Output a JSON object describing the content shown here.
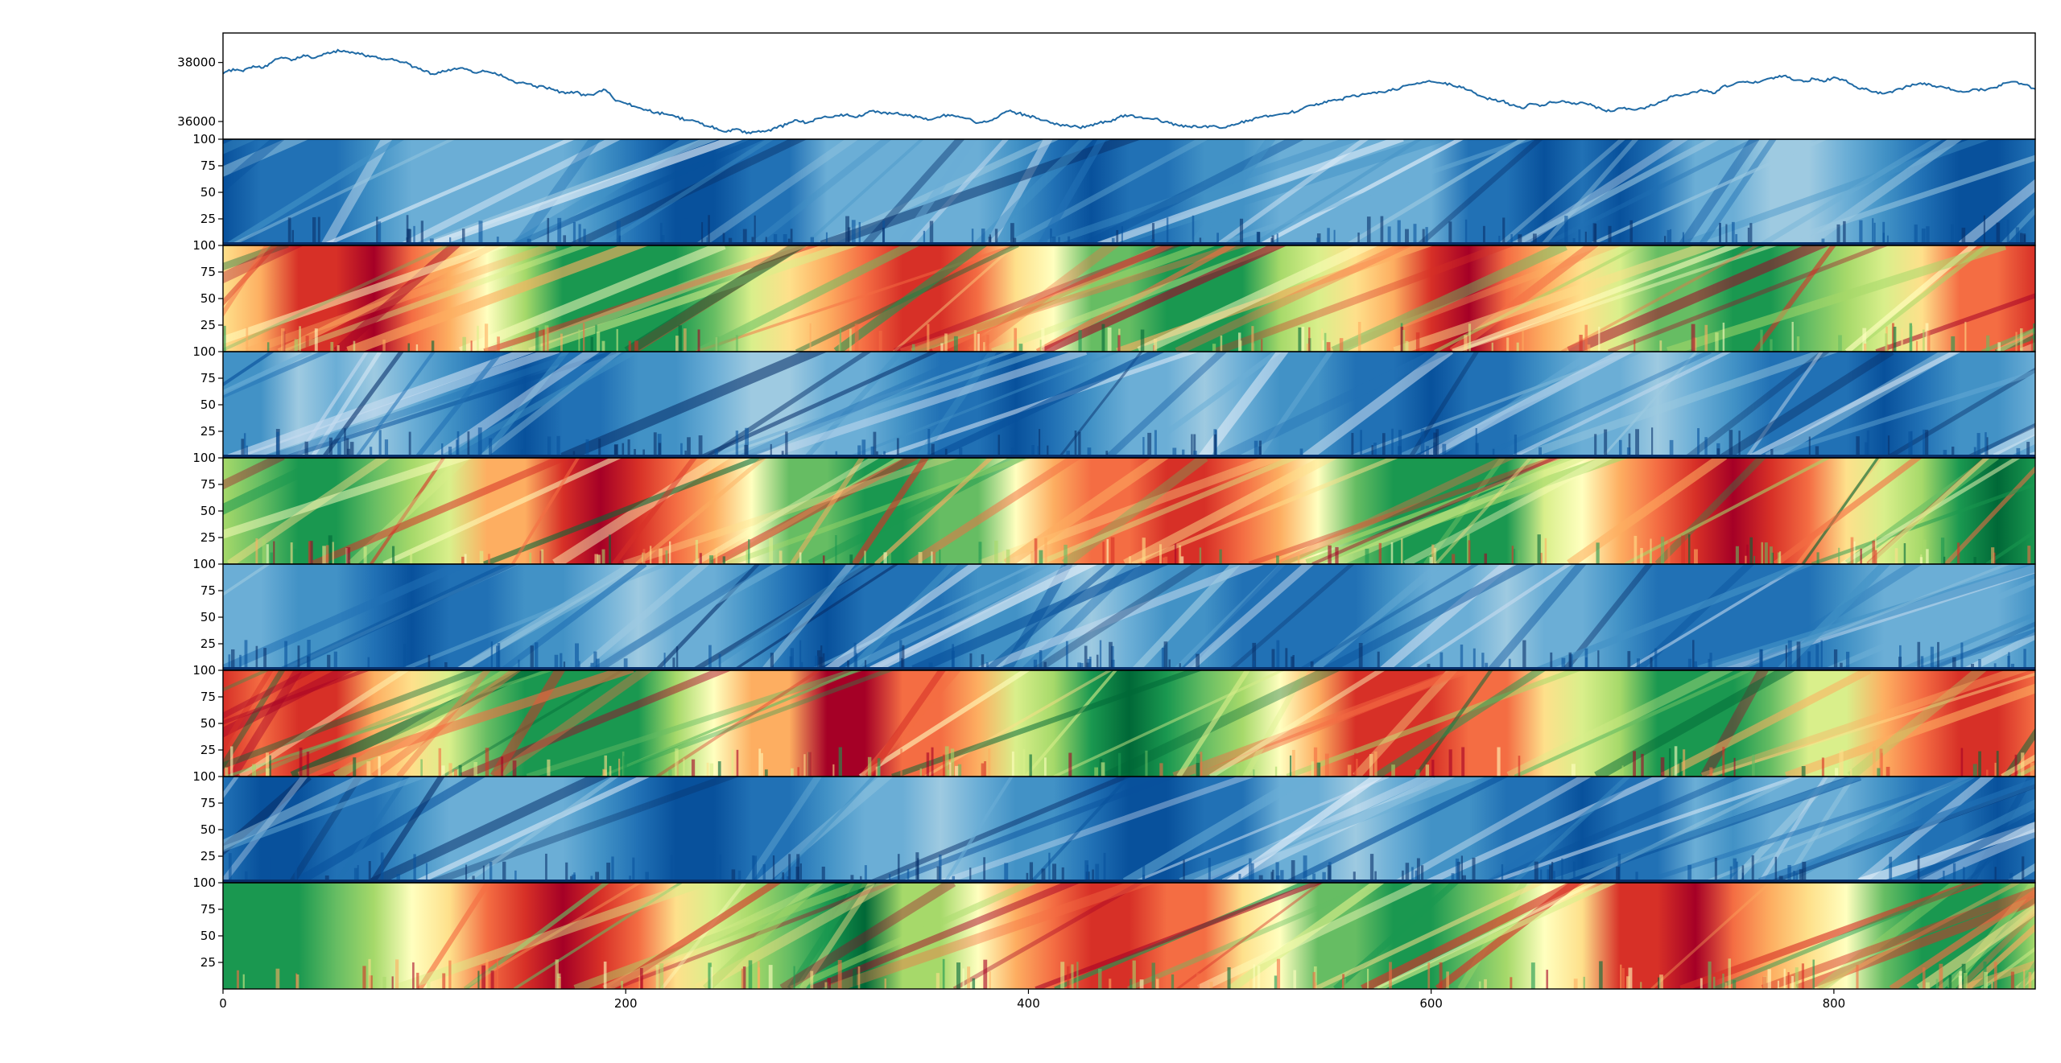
{
  "chart_data": [
    {
      "type": "line",
      "series": [
        {
          "points": [
            [
              0,
              37620
            ],
            [
              5,
              37780
            ],
            [
              10,
              37700
            ],
            [
              15,
              37880
            ],
            [
              20,
              37820
            ],
            [
              25,
              38050
            ],
            [
              30,
              38150
            ],
            [
              35,
              38100
            ],
            [
              40,
              38250
            ],
            [
              45,
              38150
            ],
            [
              50,
              38300
            ],
            [
              55,
              38380
            ],
            [
              60,
              38400
            ],
            [
              65,
              38330
            ],
            [
              70,
              38250
            ],
            [
              75,
              38200
            ],
            [
              80,
              38120
            ],
            [
              85,
              38080
            ],
            [
              90,
              38000
            ],
            [
              95,
              37850
            ],
            [
              100,
              37700
            ],
            [
              105,
              37600
            ],
            [
              110,
              37700
            ],
            [
              115,
              37800
            ],
            [
              120,
              37780
            ],
            [
              125,
              37650
            ],
            [
              130,
              37700
            ],
            [
              135,
              37650
            ],
            [
              140,
              37500
            ],
            [
              145,
              37320
            ],
            [
              150,
              37300
            ],
            [
              155,
              37200
            ],
            [
              160,
              37150
            ],
            [
              165,
              37050
            ],
            [
              170,
              36950
            ],
            [
              175,
              37000
            ],
            [
              180,
              36880
            ],
            [
              185,
              36950
            ],
            [
              190,
              37070
            ],
            [
              195,
              36700
            ],
            [
              200,
              36620
            ],
            [
              205,
              36500
            ],
            [
              210,
              36400
            ],
            [
              215,
              36300
            ],
            [
              220,
              36250
            ],
            [
              225,
              36150
            ],
            [
              230,
              36050
            ],
            [
              235,
              36000
            ],
            [
              240,
              35850
            ],
            [
              245,
              35780
            ],
            [
              250,
              35650
            ],
            [
              255,
              35750
            ],
            [
              260,
              35600
            ],
            [
              265,
              35650
            ],
            [
              270,
              35680
            ],
            [
              275,
              35780
            ],
            [
              280,
              35900
            ],
            [
              285,
              36050
            ],
            [
              290,
              35950
            ],
            [
              295,
              36100
            ],
            [
              300,
              36150
            ],
            [
              305,
              36200
            ],
            [
              310,
              36250
            ],
            [
              315,
              36150
            ],
            [
              320,
              36300
            ],
            [
              325,
              36350
            ],
            [
              330,
              36250
            ],
            [
              335,
              36300
            ],
            [
              340,
              36200
            ],
            [
              345,
              36150
            ],
            [
              350,
              36050
            ],
            [
              355,
              36150
            ],
            [
              360,
              36230
            ],
            [
              365,
              36180
            ],
            [
              370,
              36100
            ],
            [
              375,
              35950
            ],
            [
              380,
              36000
            ],
            [
              385,
              36150
            ],
            [
              390,
              36350
            ],
            [
              395,
              36280
            ],
            [
              400,
              36200
            ],
            [
              405,
              36100
            ],
            [
              410,
              36000
            ],
            [
              415,
              35900
            ],
            [
              420,
              35850
            ],
            [
              425,
              35800
            ],
            [
              430,
              35850
            ],
            [
              435,
              35950
            ],
            [
              440,
              36000
            ],
            [
              445,
              36150
            ],
            [
              450,
              36200
            ],
            [
              455,
              36150
            ],
            [
              460,
              36100
            ],
            [
              465,
              36050
            ],
            [
              470,
              35950
            ],
            [
              475,
              35850
            ],
            [
              480,
              35830
            ],
            [
              485,
              35800
            ],
            [
              490,
              35850
            ],
            [
              495,
              35780
            ],
            [
              500,
              35850
            ],
            [
              505,
              35950
            ],
            [
              510,
              36050
            ],
            [
              515,
              36150
            ],
            [
              520,
              36200
            ],
            [
              525,
              36250
            ],
            [
              530,
              36300
            ],
            [
              535,
              36400
            ],
            [
              540,
              36550
            ],
            [
              545,
              36600
            ],
            [
              550,
              36700
            ],
            [
              555,
              36750
            ],
            [
              560,
              36850
            ],
            [
              565,
              36900
            ],
            [
              570,
              36950
            ],
            [
              575,
              37000
            ],
            [
              580,
              37050
            ],
            [
              585,
              37150
            ],
            [
              590,
              37250
            ],
            [
              595,
              37300
            ],
            [
              600,
              37350
            ],
            [
              605,
              37300
            ],
            [
              610,
              37250
            ],
            [
              615,
              37150
            ],
            [
              620,
              37050
            ],
            [
              625,
              36850
            ],
            [
              630,
              36750
            ],
            [
              635,
              36700
            ],
            [
              640,
              36550
            ],
            [
              645,
              36450
            ],
            [
              650,
              36600
            ],
            [
              655,
              36550
            ],
            [
              660,
              36650
            ],
            [
              665,
              36700
            ],
            [
              670,
              36600
            ],
            [
              675,
              36650
            ],
            [
              680,
              36550
            ],
            [
              685,
              36400
            ],
            [
              690,
              36350
            ],
            [
              695,
              36450
            ],
            [
              700,
              36400
            ],
            [
              705,
              36450
            ],
            [
              710,
              36550
            ],
            [
              715,
              36700
            ],
            [
              720,
              36850
            ],
            [
              725,
              36900
            ],
            [
              730,
              37000
            ],
            [
              735,
              37050
            ],
            [
              740,
              36950
            ],
            [
              745,
              37200
            ],
            [
              750,
              37250
            ],
            [
              755,
              37350
            ],
            [
              760,
              37300
            ],
            [
              765,
              37400
            ],
            [
              770,
              37450
            ],
            [
              775,
              37550
            ],
            [
              780,
              37400
            ],
            [
              785,
              37350
            ],
            [
              790,
              37450
            ],
            [
              795,
              37350
            ],
            [
              800,
              37500
            ],
            [
              805,
              37400
            ],
            [
              810,
              37200
            ],
            [
              815,
              37100
            ],
            [
              820,
              37000
            ],
            [
              825,
              36950
            ],
            [
              830,
              37050
            ],
            [
              835,
              37150
            ],
            [
              840,
              37250
            ],
            [
              845,
              37300
            ],
            [
              850,
              37200
            ],
            [
              855,
              37150
            ],
            [
              860,
              37050
            ],
            [
              865,
              37000
            ],
            [
              870,
              37100
            ],
            [
              875,
              37050
            ],
            [
              880,
              37150
            ],
            [
              885,
              37300
            ],
            [
              890,
              37350
            ],
            [
              895,
              37250
            ],
            [
              900,
              37100
            ]
          ]
        }
      ],
      "xlim": [
        0,
        900
      ],
      "ylim": [
        35400,
        39000
      ],
      "yticks": [
        "36000",
        "38000"
      ]
    },
    {
      "type": "heatmap",
      "colormap": "Blues",
      "ylim": [
        0,
        100
      ],
      "yticks": [
        "25",
        "50",
        "75",
        "100"
      ],
      "xlim": [
        0,
        900
      ]
    },
    {
      "type": "heatmap",
      "colormap": "RdYlGn",
      "ylim": [
        0,
        100
      ],
      "yticks": [
        "25",
        "50",
        "75",
        "100"
      ],
      "xlim": [
        0,
        900
      ]
    },
    {
      "type": "heatmap",
      "colormap": "Blues",
      "ylim": [
        0,
        100
      ],
      "yticks": [
        "25",
        "50",
        "75",
        "100"
      ],
      "xlim": [
        0,
        900
      ]
    },
    {
      "type": "heatmap",
      "colormap": "RdYlGn",
      "ylim": [
        0,
        100
      ],
      "yticks": [
        "25",
        "50",
        "75",
        "100"
      ],
      "xlim": [
        0,
        900
      ]
    },
    {
      "type": "heatmap",
      "colormap": "Blues",
      "ylim": [
        0,
        100
      ],
      "yticks": [
        "25",
        "50",
        "75",
        "100"
      ],
      "xlim": [
        0,
        900
      ]
    },
    {
      "type": "heatmap",
      "colormap": "RdYlGn",
      "ylim": [
        0,
        100
      ],
      "yticks": [
        "25",
        "50",
        "75",
        "100"
      ],
      "xlim": [
        0,
        900
      ]
    },
    {
      "type": "heatmap",
      "colormap": "Blues",
      "ylim": [
        0,
        100
      ],
      "yticks": [
        "25",
        "50",
        "75",
        "100"
      ],
      "xlim": [
        0,
        900
      ]
    },
    {
      "type": "heatmap",
      "colormap": "RdYlGn",
      "ylim": [
        0,
        100
      ],
      "yticks": [
        "25",
        "50",
        "75",
        "100"
      ],
      "xlim": [
        0,
        900
      ],
      "xticks": [
        "0",
        "200",
        "400",
        "600",
        "800"
      ]
    }
  ],
  "colors": {
    "line": "#1f6aa5",
    "blues": [
      "#eaf2fb",
      "#c6dbef",
      "#9ecae1",
      "#6baed6",
      "#4292c6",
      "#2171b5",
      "#08519c",
      "#08306b"
    ],
    "rdylgn": [
      "#a50026",
      "#d73027",
      "#f46d43",
      "#fdae61",
      "#fee08b",
      "#ffffbf",
      "#d9ef8b",
      "#a6d96a",
      "#66bd63",
      "#1a9850",
      "#006837"
    ]
  }
}
